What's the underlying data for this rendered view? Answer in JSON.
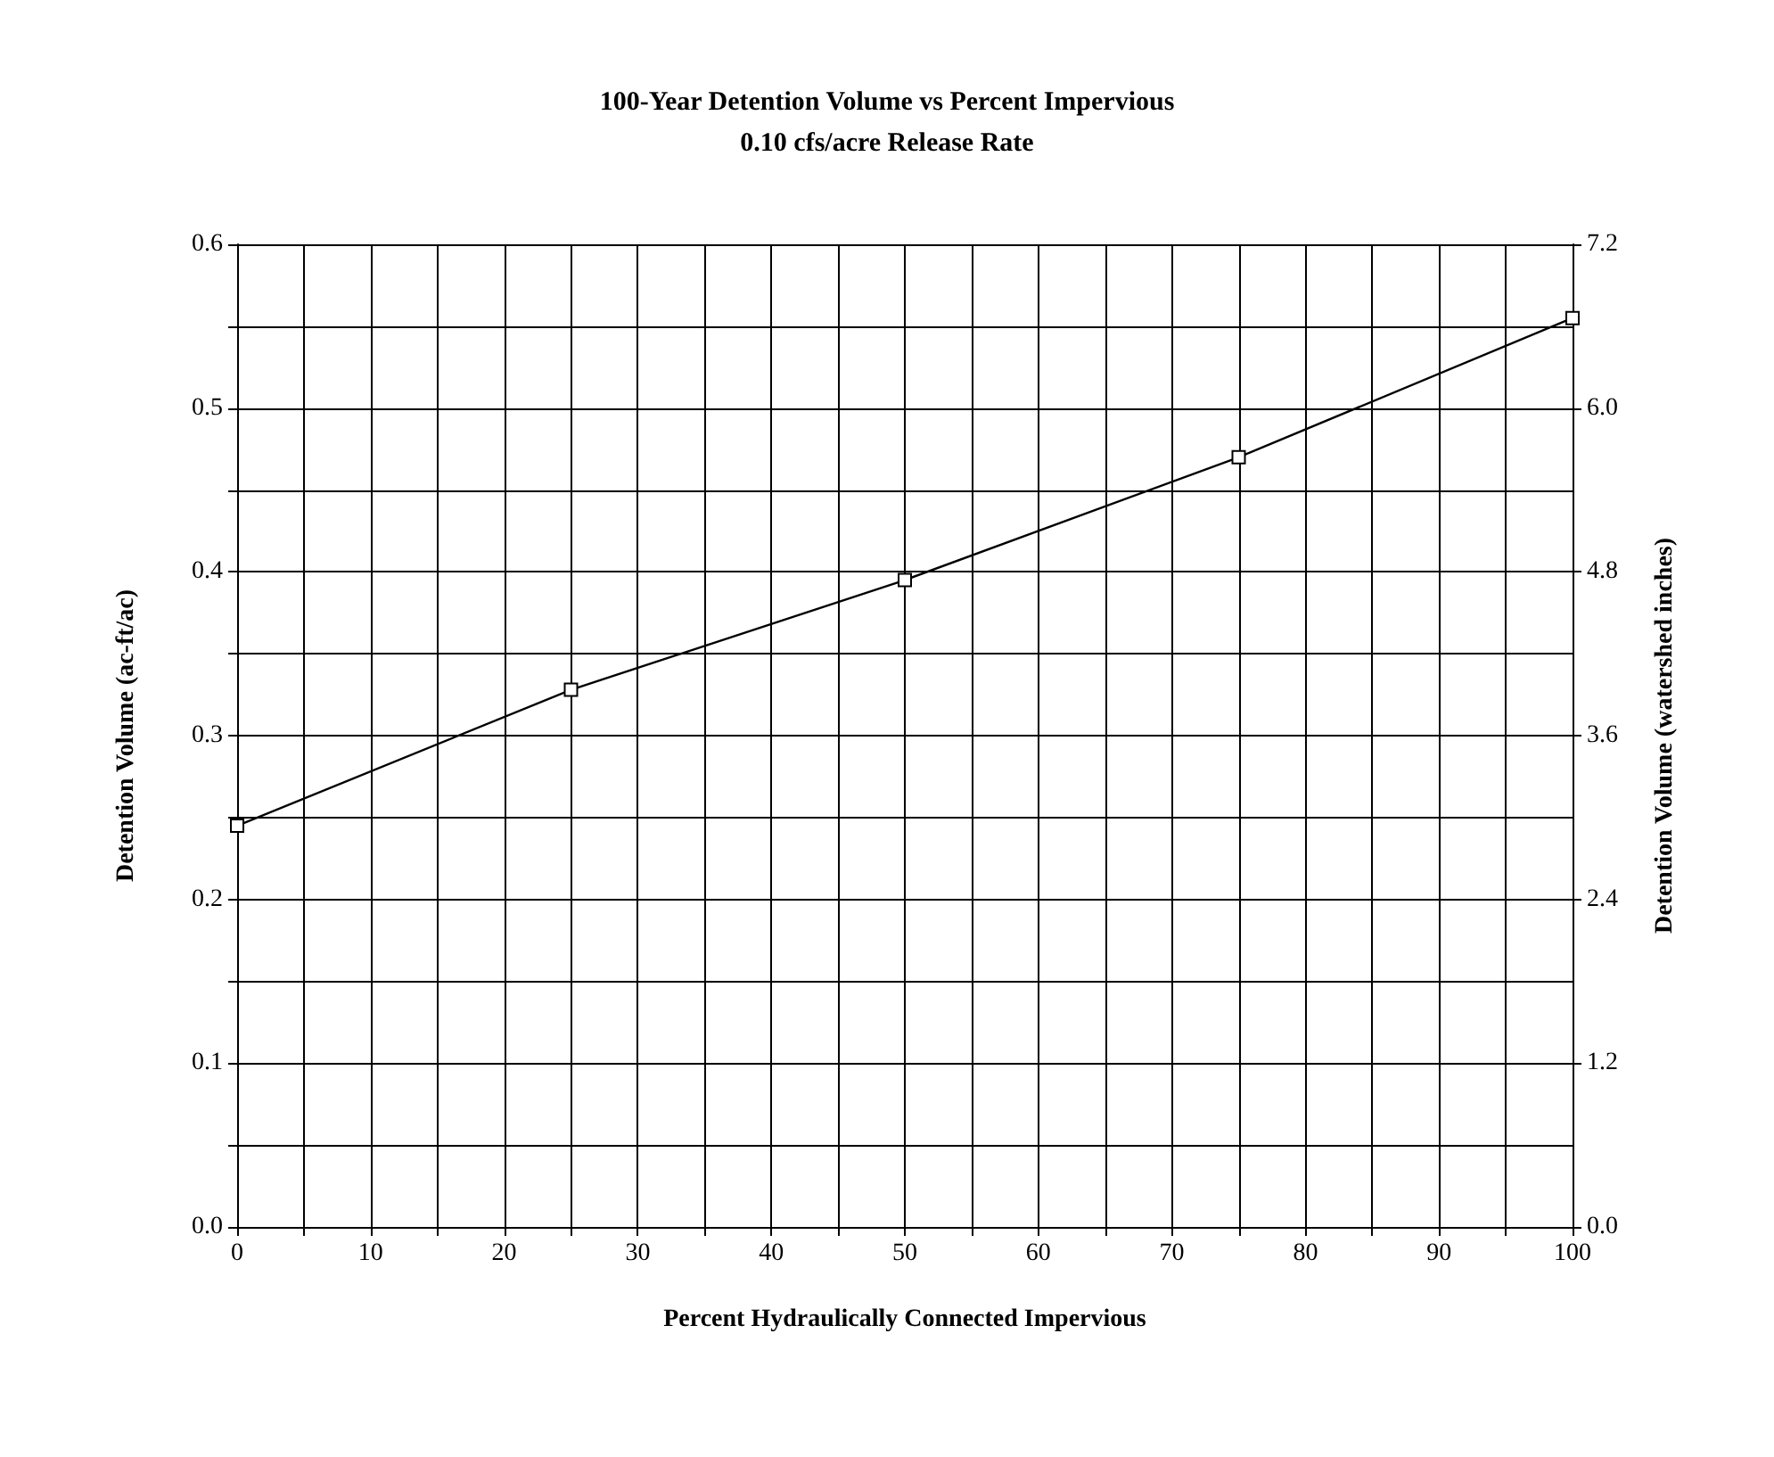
{
  "chart_data": {
    "type": "line",
    "title": "100-Year Detention Volume vs Percent Impervious",
    "subtitle": "0.10 cfs/acre Release Rate",
    "xlabel": "Percent Hydraulically Connected Impervious",
    "ylabel": "Detention Volume (ac-ft/ac)",
    "y2label": "Detention Volume (watershed inches)",
    "x": [
      0,
      25,
      50,
      75,
      100
    ],
    "series": [
      {
        "color": "#000000",
        "values": [
          0.245,
          0.328,
          0.395,
          0.47,
          0.555
        ]
      }
    ],
    "xlim": [
      0,
      100
    ],
    "xticks": [
      0,
      {
        "value": 5,
        "label": null
      },
      10,
      {
        "value": 15,
        "label": null
      },
      20,
      {
        "value": 25,
        "label": null
      },
      30,
      {
        "value": 35,
        "label": null
      },
      40,
      {
        "value": 45,
        "label": null
      },
      50,
      {
        "value": 55,
        "label": null
      },
      60,
      {
        "value": 65,
        "label": null
      },
      70,
      {
        "value": 75,
        "label": null
      },
      80,
      {
        "value": 85,
        "label": null
      },
      90,
      {
        "value": 95,
        "label": null
      },
      100
    ],
    "ylim": [
      0,
      0.6
    ],
    "yticks": [
      {
        "value": 0,
        "label": "0.0"
      },
      {
        "value": 0.05,
        "label": null
      },
      0.1,
      {
        "value": 0.15,
        "label": null
      },
      0.2,
      {
        "value": 0.25,
        "label": null
      },
      0.3,
      {
        "value": 0.35,
        "label": null
      },
      0.4,
      {
        "value": 0.45,
        "label": null
      },
      0.5,
      {
        "value": 0.55,
        "label": null
      },
      0.6
    ],
    "y2lim": [
      0,
      7.2
    ],
    "y2ticks": [
      {
        "value": 0,
        "label": "0.0"
      },
      1.2,
      2.4,
      3.6,
      4.8,
      {
        "value": 6,
        "label": "6.0"
      },
      7.2
    ],
    "grid": true,
    "marker": "square",
    "line_style": "solid"
  }
}
